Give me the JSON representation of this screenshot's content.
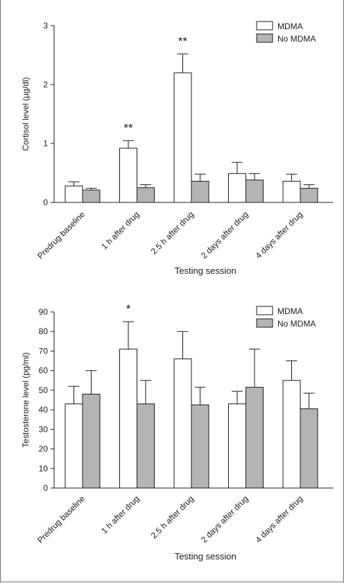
{
  "chart_data": [
    {
      "type": "bar",
      "title": "",
      "xlabel": "Testing session",
      "ylabel": "Cortisol level (µg/dl)",
      "categories": [
        "Predrug baseline",
        "1 h after drug",
        "2.5 h after drug",
        "2 days after drug",
        "4 days after drug"
      ],
      "ylim": [
        0,
        3
      ],
      "yticks": [
        "0",
        "1",
        "2",
        "3"
      ],
      "legend_position": "top-right",
      "series": [
        {
          "name": "MDMA",
          "color": "#ffffff",
          "values": [
            0.28,
            0.92,
            2.2,
            0.49,
            0.36
          ],
          "errors": [
            0.07,
            0.13,
            0.32,
            0.19,
            0.12
          ]
        },
        {
          "name": "No MDMA",
          "color": "#b4b4b4",
          "values": [
            0.21,
            0.25,
            0.36,
            0.38,
            0.24
          ],
          "errors": [
            0.03,
            0.05,
            0.12,
            0.11,
            0.06
          ]
        }
      ],
      "annotations": [
        "",
        "**",
        "**",
        "",
        ""
      ]
    },
    {
      "type": "bar",
      "title": "",
      "xlabel": "Testing session",
      "ylabel": "Testosterone level (pg/ml)",
      "categories": [
        "Predrug baseline",
        "1 h after drug",
        "2.5 h after drug",
        "2 days after drug",
        "4 days after drug"
      ],
      "ylim": [
        0,
        90
      ],
      "yticks": [
        "0",
        "10",
        "20",
        "30",
        "40",
        "50",
        "60",
        "70",
        "80",
        "90"
      ],
      "legend_position": "top-right",
      "series": [
        {
          "name": "MDMA",
          "color": "#ffffff",
          "values": [
            43,
            71,
            66,
            43,
            55
          ],
          "errors": [
            9,
            14,
            14,
            6.5,
            10
          ]
        },
        {
          "name": "No MDMA",
          "color": "#b4b4b4",
          "values": [
            48,
            43,
            42.5,
            51.5,
            40.5
          ],
          "errors": [
            12,
            12,
            9,
            19.5,
            8
          ]
        }
      ],
      "annotations": [
        "",
        "*",
        "",
        "",
        ""
      ]
    }
  ]
}
